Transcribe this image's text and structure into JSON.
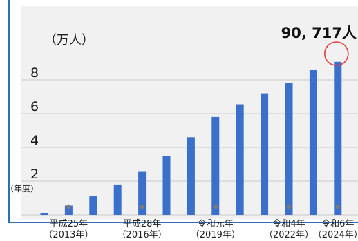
{
  "chart_data": {
    "type": "bar",
    "unit_label": "（万人）",
    "ylabel": "（年度）",
    "ylim": [
      0,
      9
    ],
    "yticks": [
      {
        "value": 2,
        "label": "2"
      },
      {
        "value": 4,
        "label": "4"
      },
      {
        "value": 6,
        "label": "6"
      },
      {
        "value": 8,
        "label": "8"
      }
    ],
    "categories": [
      "2012",
      "2013",
      "2014",
      "2015",
      "2016",
      "2017",
      "2018",
      "2019",
      "2020",
      "2021",
      "2022",
      "2023",
      "2024"
    ],
    "values": [
      0.12,
      0.55,
      1.1,
      1.8,
      2.55,
      3.5,
      4.6,
      5.8,
      6.55,
      7.2,
      7.8,
      8.6,
      9.07
    ],
    "category_labels": [
      {
        "index": 1,
        "line1": "平成25年",
        "line2": "（2013年）"
      },
      {
        "index": 4,
        "line1": "平成28年",
        "line2": "（2016年）"
      },
      {
        "index": 7,
        "line1": "令和元年",
        "line2": "（2019年）"
      },
      {
        "index": 10,
        "line1": "令和4年",
        "line2": "（2022年）"
      },
      {
        "index": 12,
        "line1": "令和6年",
        "line2": "（2024年）"
      }
    ],
    "marker_indices": [
      1,
      4,
      7,
      10,
      12
    ],
    "annotation": {
      "text": "90, 717人",
      "bar_index": 12
    },
    "grid": true,
    "colors": {
      "bar": "#3a6fcb",
      "grid": "#c9c9c9",
      "marker": "#7a7a7a",
      "circle": "#e53935",
      "background": "#f1f1f1",
      "frame": "#2f6fb8"
    }
  }
}
